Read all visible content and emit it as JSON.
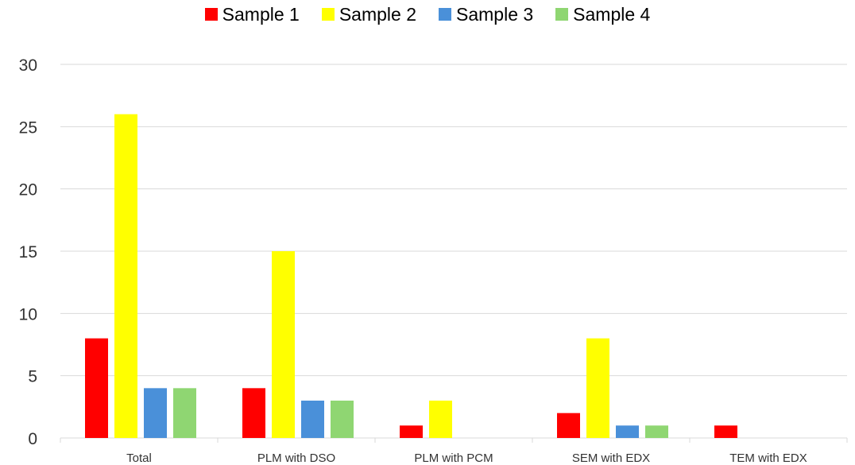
{
  "chart_data": {
    "type": "bar",
    "title": "",
    "xlabel": "",
    "ylabel": "",
    "categories": [
      "Total",
      "PLM with DSO",
      "PLM with PCM",
      "SEM with EDX",
      "TEM with EDX"
    ],
    "series": [
      {
        "name": "Sample 1",
        "color": "#ff0000",
        "values": [
          8,
          4,
          1,
          2,
          1
        ]
      },
      {
        "name": "Sample 2",
        "color": "#ffff00",
        "values": [
          26,
          15,
          3,
          8,
          0
        ]
      },
      {
        "name": "Sample 3",
        "color": "#4a90d9",
        "values": [
          4,
          3,
          0,
          1,
          0
        ]
      },
      {
        "name": "Sample 4",
        "color": "#8fd672",
        "values": [
          4,
          3,
          0,
          1,
          0
        ]
      }
    ],
    "ylim": [
      0,
      30
    ],
    "yticks": [
      0,
      5,
      10,
      15,
      20,
      25,
      30
    ],
    "grid": true,
    "legend_position": "top"
  }
}
